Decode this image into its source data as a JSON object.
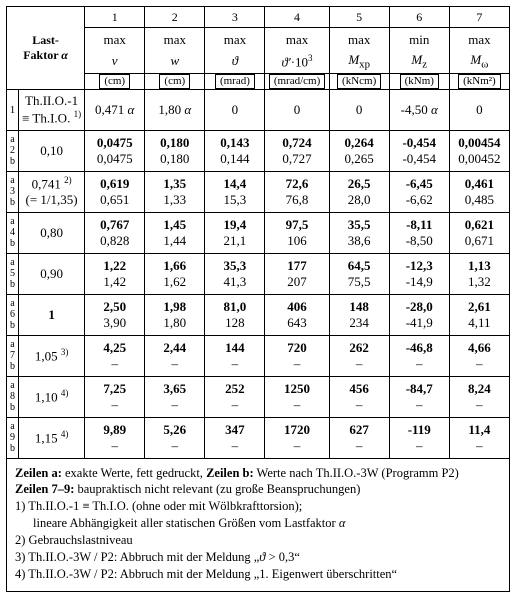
{
  "columns": {
    "numbers": [
      "1",
      "2",
      "3",
      "4",
      "5",
      "6",
      "7"
    ],
    "top": [
      "max",
      "max",
      "max",
      "max",
      "max",
      "min",
      "max"
    ],
    "sym_html": [
      "<span class='ital'>v</span>",
      "<span class='ital'>w</span>",
      "<span class='ital sym'>ϑ</span>",
      "<span class='ital sym'>ϑ'</span>·10<sup>3</sup>",
      "<span class='ital'>M</span><sub>xp</sub>",
      "<span class='ital'>M</span><sub>z</sub>",
      "<span class='ital'>M</span><sub>ω</sub>"
    ],
    "units": [
      "(cm)",
      "(cm)",
      "(mrad)",
      "(mrad/cm)",
      "(kNcm)",
      "(kNm)",
      "(kNm²)"
    ]
  },
  "header_left_html": "<b>Last-<br>Faktor <span class='ital'>α</span></b>",
  "rows": [
    {
      "n": "1",
      "ab": false,
      "lf_html": "Th.II.O.-1<br>≡ Th.I.O. <sup>1)</sup>",
      "a": [
        "0,471 <span class='ital'>α</span>",
        "1,80 <span class='ital'>α</span>",
        "0",
        "0",
        "0",
        "-4,50 <span class='ital'>α</span>",
        "0"
      ]
    },
    {
      "n": "2",
      "ab": true,
      "lf_html": "0,10",
      "a": [
        "0,0475",
        "0,180",
        "0,143",
        "0,724",
        "0,264",
        "-0,454",
        "0,00454"
      ],
      "b": [
        "0,0475",
        "0,180",
        "0,144",
        "0,727",
        "0,265",
        "-0,454",
        "0,00452"
      ]
    },
    {
      "n": "3",
      "ab": true,
      "lf_html": "0,741 <sup>2)</sup><br>(= 1/1,35)",
      "a": [
        "0,619",
        "1,35",
        "14,4",
        "72,6",
        "26,5",
        "-6,45",
        "0,461"
      ],
      "b": [
        "0,651",
        "1,33",
        "15,3",
        "76,8",
        "28,0",
        "-6,62",
        "0,485"
      ]
    },
    {
      "n": "4",
      "ab": true,
      "lf_html": "0,80",
      "a": [
        "0,767",
        "1,45",
        "19,4",
        "97,5",
        "35,5",
        "-8,11",
        "0,621"
      ],
      "b": [
        "0,828",
        "1,44",
        "21,1",
        "106",
        "38,6",
        "-8,50",
        "0,671"
      ]
    },
    {
      "n": "5",
      "ab": true,
      "lf_html": "0,90",
      "a": [
        "1,22",
        "1,66",
        "35,3",
        "177",
        "64,5",
        "-12,3",
        "1,13"
      ],
      "b": [
        "1,42",
        "1,62",
        "41,3",
        "207",
        "75,5",
        "-14,9",
        "1,32"
      ]
    },
    {
      "n": "6",
      "ab": true,
      "lf_html": "<b>1</b>",
      "a": [
        "2,50",
        "1,98",
        "81,0",
        "406",
        "148",
        "-28,0",
        "2,61"
      ],
      "b": [
        "3,90",
        "1,80",
        "128",
        "643",
        "234",
        "-41,9",
        "4,11"
      ]
    },
    {
      "n": "7",
      "ab": true,
      "lf_html": "1,05 <sup>3)</sup>",
      "a": [
        "4,25",
        "2,44",
        "144",
        "720",
        "262",
        "-46,8",
        "4,66"
      ],
      "b": [
        "–",
        "–",
        "–",
        "–",
        "–",
        "–",
        "–"
      ]
    },
    {
      "n": "8",
      "ab": true,
      "lf_html": "1,10 <sup>4)</sup>",
      "a": [
        "7,25",
        "3,65",
        "252",
        "1250",
        "456",
        "-84,7",
        "8,24"
      ],
      "b": [
        "–",
        "–",
        "–",
        "–",
        "–",
        "–",
        "–"
      ]
    },
    {
      "n": "9",
      "ab": true,
      "lf_html": "1,15 <sup>4)</sup>",
      "a": [
        "9,89",
        "5,26",
        "347",
        "1720",
        "627",
        "-119",
        "11,4"
      ],
      "b": [
        "–",
        "–",
        "–",
        "–",
        "–",
        "–",
        "–"
      ]
    }
  ],
  "footnotes_html": [
    "<b>Zeilen a:</b>  exakte Werte, fett gedruckt,  <b>Zeilen b:</b>  Werte nach Th.II.O.-3W (Programm P2)",
    "<b>Zeilen 7–9:</b>  baupraktisch nicht relevant (zu große Beanspruchungen)",
    "1)  Th.II.O.-1  ≡  Th.I.O. (ohne oder mit Wölbkrafttorsion);",
    "<span class='indent'>lineare Abhängigkeit aller statischen Größen vom Lastfaktor <span class='ital'>α</span></span>",
    "2)  Gebrauchslastniveau",
    "3)  Th.II.O.-3W / P2:  Abbruch mit der Meldung „<span class='ital sym'>ϑ</span> &gt; 0,3“",
    "4)  Th.II.O.-3W / P2:  Abbruch mit der Meldung „1. Eigenwert überschritten“"
  ]
}
